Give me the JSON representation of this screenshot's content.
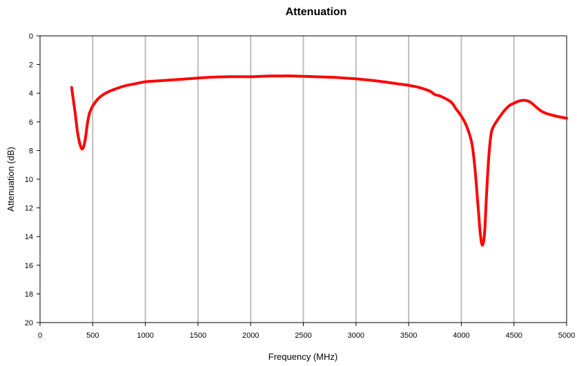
{
  "chart_data": {
    "type": "line",
    "title": "Attenuation",
    "xlabel": "Frequency (MHz)",
    "ylabel": "Attenuation (dB)",
    "xlim": [
      0,
      5000
    ],
    "ylim": [
      0,
      20
    ],
    "y_inverted": true,
    "grid": "vertical",
    "legend": "none",
    "x_ticks": [
      0,
      500,
      1000,
      1500,
      2000,
      2500,
      3000,
      3500,
      4000,
      4500,
      5000
    ],
    "y_ticks": [
      0,
      2,
      4,
      6,
      8,
      10,
      12,
      14,
      16,
      18,
      20
    ],
    "series": [
      {
        "color": "#ff0000",
        "x": [
          300,
          330,
          360,
          390,
          410,
          430,
          450,
          470,
          500,
          550,
          600,
          650,
          700,
          800,
          900,
          1000,
          1100,
          1200,
          1400,
          1600,
          1800,
          2000,
          2100,
          2200,
          2300,
          2400,
          2600,
          2800,
          2900,
          3000,
          3200,
          3400,
          3500,
          3600,
          3700,
          3750,
          3800,
          3900,
          3950,
          4000,
          4050,
          4100,
          4130,
          4160,
          4180,
          4200,
          4220,
          4240,
          4260,
          4280,
          4300,
          4350,
          4400,
          4450,
          4500,
          4550,
          4600,
          4650,
          4700,
          4750,
          4800,
          4900,
          5000
        ],
        "values": [
          3.6,
          5.2,
          6.9,
          7.8,
          7.8,
          7.2,
          6.1,
          5.4,
          4.9,
          4.4,
          4.1,
          3.9,
          3.75,
          3.5,
          3.35,
          3.2,
          3.15,
          3.1,
          3.0,
          2.9,
          2.85,
          2.85,
          2.82,
          2.8,
          2.8,
          2.8,
          2.85,
          2.9,
          2.95,
          3.0,
          3.15,
          3.35,
          3.45,
          3.6,
          3.85,
          4.1,
          4.2,
          4.6,
          5.1,
          5.6,
          6.3,
          7.5,
          9.3,
          12.0,
          13.8,
          14.6,
          13.8,
          11.0,
          8.5,
          7.0,
          6.4,
          5.8,
          5.3,
          4.9,
          4.7,
          4.55,
          4.5,
          4.6,
          4.9,
          5.2,
          5.4,
          5.6,
          5.75
        ]
      }
    ]
  }
}
